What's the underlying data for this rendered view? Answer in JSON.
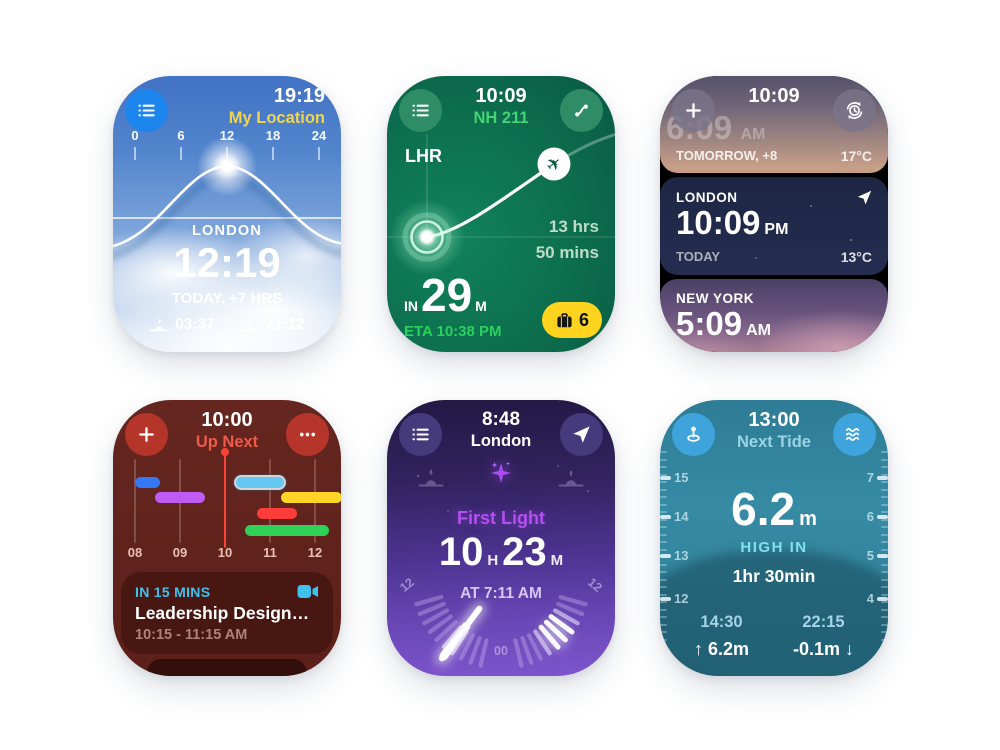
{
  "page": {
    "background": "#ffffff"
  },
  "faces": {
    "solar": {
      "header_time": "19:19",
      "location_label": "My Location",
      "scale": [
        "0",
        "6",
        "12",
        "18",
        "24"
      ],
      "city": "LONDON",
      "city_time": "12:19",
      "day_offset": "TODAY, +7 HRS",
      "sunrise_time": "03:37",
      "sunset_time": "21:12",
      "accent": "#EFD54D",
      "icons": {
        "menu": "list-icon",
        "sunrise": "sunrise-icon",
        "sunset": "sunset-icon",
        "sun": "sun-glow-icon"
      }
    },
    "flight": {
      "header_time": "10:09",
      "flight_number": "NH 211",
      "origin": "LHR",
      "duration_line1": "13 hrs",
      "duration_line2": "50 mins",
      "landing_prefix": "IN",
      "landing_value": "29",
      "landing_unit": "M",
      "eta": "ETA 10:38 PM",
      "bag_count": "6",
      "accent": "#2ED05C",
      "badge_color": "#FFD41F",
      "icons": {
        "menu": "list-icon",
        "route": "route-icon",
        "plane": "plane-icon",
        "bags": "briefcase-icon"
      }
    },
    "worldclock": {
      "header_time": "10:09",
      "cards": [
        {
          "time": "6:09",
          "meridiem": "AM",
          "sub": "TOMORROW, +8",
          "temp": "17°C"
        },
        {
          "city": "LONDON",
          "time": "10:09",
          "meridiem": "PM",
          "sub": "TODAY",
          "temp": "13°C"
        },
        {
          "city": "NEW YORK",
          "time": "5:09",
          "meridiem": "AM"
        }
      ],
      "icons": {
        "add": "plus-icon",
        "convert": "timezone-sync-icon",
        "location": "location-arrow-icon"
      }
    },
    "calendar": {
      "header_time": "10:00",
      "title": "Up Next",
      "now_hour": 10,
      "hours": [
        "08",
        "09",
        "10",
        "11",
        "12"
      ],
      "bars": [
        {
          "row": 0,
          "start": 8.0,
          "end": 8.55,
          "color": "#3478F6",
          "highlight": false,
          "name": "event-blue"
        },
        {
          "row": 1,
          "start": 8.45,
          "end": 9.55,
          "color": "#BF5AF2",
          "highlight": false,
          "name": "event-purple"
        },
        {
          "row": 0,
          "start": 10.25,
          "end": 11.3,
          "color": "#64C8F2",
          "highlight": true,
          "name": "event-cyan"
        },
        {
          "row": 1,
          "start": 11.25,
          "end": 12.6,
          "color": "#FFD426",
          "highlight": false,
          "name": "event-yellow"
        },
        {
          "row": 2,
          "start": 10.7,
          "end": 11.6,
          "color": "#FC3D39",
          "highlight": false,
          "name": "event-red"
        },
        {
          "row": 3,
          "start": 10.45,
          "end": 12.3,
          "color": "#2FD158",
          "highlight": false,
          "name": "event-green"
        }
      ],
      "event_notice": "IN 15 MINS",
      "event_title": "Leadership Design…",
      "event_time": "10:15 - 11:15 AM",
      "accent": "#EF5A4A",
      "notice_color": "#3FC1EE",
      "icons": {
        "add": "plus-icon",
        "more": "ellipsis-icon",
        "video": "video-camera-icon"
      }
    },
    "daylight": {
      "header_time": "8:48",
      "city": "London",
      "phase_label": "First Light",
      "hours_value": "10",
      "hours_unit": "H",
      "minutes_value": "23",
      "minutes_unit": "M",
      "at_time": "AT 7:11 AM",
      "dial": {
        "left_label": "12",
        "bottom_label": "00",
        "right_label": "12"
      },
      "accent": "#B44FF2",
      "icons": {
        "menu": "list-icon",
        "location": "location-arrow-icon",
        "sparkle": "sparkle-icon",
        "sunset": "sunset-icon",
        "sunrise": "sunrise-icon"
      }
    },
    "tide": {
      "header_time": "13:00",
      "title": "Next Tide",
      "height_value": "6.2",
      "height_unit": "m",
      "state_label": "HIGH IN",
      "countdown": "1hr 30min",
      "left_scale": [
        "15",
        "14",
        "13",
        "12"
      ],
      "right_scale": [
        "7",
        "6",
        "5",
        "4"
      ],
      "events": [
        {
          "time": "14:30",
          "value": "↑ 6.2m"
        },
        {
          "time": "22:15",
          "value": "-0.1m ↓"
        }
      ],
      "accent": "#7EE0F0",
      "icons": {
        "location": "pin-icon",
        "waves": "waves-icon"
      }
    }
  }
}
